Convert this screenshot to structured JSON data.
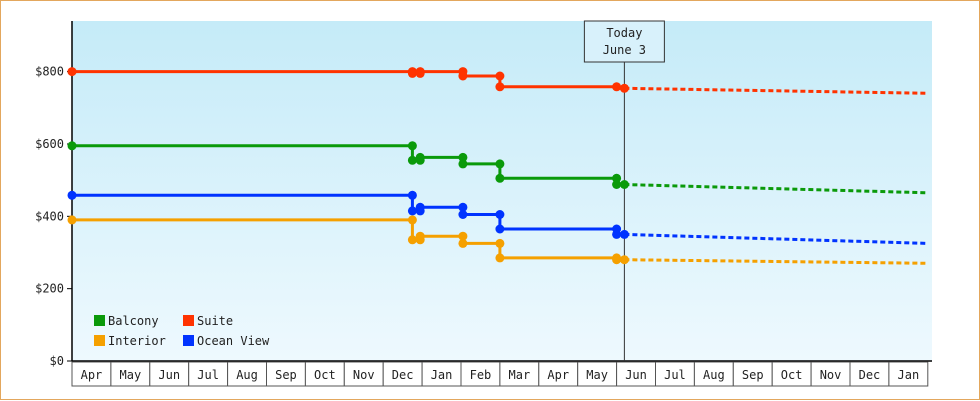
{
  "chart_data": {
    "type": "line",
    "title": "",
    "xlabel": "",
    "ylabel": "",
    "y_ticks": [
      "$0",
      "$200",
      "$400",
      "$600",
      "$800"
    ],
    "y_tick_values": [
      0,
      200,
      400,
      600,
      800
    ],
    "ylim": [
      0,
      940
    ],
    "x_months": [
      "Apr",
      "May",
      "Jun",
      "Jul",
      "Aug",
      "Sep",
      "Oct",
      "Nov",
      "Dec",
      "Jan",
      "Feb",
      "Mar",
      "Apr",
      "May",
      "Jun",
      "Jul",
      "Aug",
      "Sep",
      "Oct",
      "Nov",
      "Dec",
      "Jan"
    ],
    "today": {
      "line1": "Today",
      "line2": "June 3",
      "x": 14.2
    },
    "legend": {
      "placement": "bottom-left"
    },
    "series": [
      {
        "name": "Suite",
        "color": "#ff3300",
        "history": [
          [
            0,
            800
          ],
          [
            8.75,
            800
          ],
          [
            8.75,
            795
          ],
          [
            8.95,
            795
          ],
          [
            8.95,
            800
          ],
          [
            10.05,
            800
          ],
          [
            10.05,
            788
          ],
          [
            11.0,
            788
          ],
          [
            11.0,
            758
          ],
          [
            14.0,
            758
          ],
          [
            14.0,
            754
          ],
          [
            14.2,
            754
          ]
        ],
        "points": [
          [
            0,
            800
          ],
          [
            8.75,
            800
          ],
          [
            8.75,
            795
          ],
          [
            8.95,
            795
          ],
          [
            8.95,
            800
          ],
          [
            10.05,
            800
          ],
          [
            10.05,
            788
          ],
          [
            11.0,
            788
          ],
          [
            11.0,
            758
          ],
          [
            14.0,
            758
          ],
          [
            14.2,
            754
          ]
        ],
        "forecast": [
          [
            14.2,
            754
          ],
          [
            22,
            740
          ]
        ]
      },
      {
        "name": "Balcony",
        "color": "#0a9a0a",
        "history": [
          [
            0,
            595
          ],
          [
            8.75,
            595
          ],
          [
            8.75,
            555
          ],
          [
            8.95,
            555
          ],
          [
            8.95,
            563
          ],
          [
            10.05,
            563
          ],
          [
            10.05,
            545
          ],
          [
            11.0,
            545
          ],
          [
            11.0,
            505
          ],
          [
            14.0,
            505
          ],
          [
            14.0,
            488
          ],
          [
            14.2,
            488
          ]
        ],
        "points": [
          [
            0,
            595
          ],
          [
            8.75,
            595
          ],
          [
            8.75,
            555
          ],
          [
            8.95,
            555
          ],
          [
            8.95,
            563
          ],
          [
            10.05,
            563
          ],
          [
            10.05,
            545
          ],
          [
            11.0,
            545
          ],
          [
            11.0,
            505
          ],
          [
            14.0,
            505
          ],
          [
            14.0,
            488
          ],
          [
            14.2,
            488
          ]
        ],
        "forecast": [
          [
            14.2,
            488
          ],
          [
            22,
            465
          ]
        ]
      },
      {
        "name": "Ocean View",
        "color": "#0033ff",
        "history": [
          [
            0,
            458
          ],
          [
            8.75,
            458
          ],
          [
            8.75,
            415
          ],
          [
            8.95,
            415
          ],
          [
            8.95,
            425
          ],
          [
            10.05,
            425
          ],
          [
            10.05,
            405
          ],
          [
            11.0,
            405
          ],
          [
            11.0,
            365
          ],
          [
            14.0,
            365
          ],
          [
            14.0,
            350
          ],
          [
            14.2,
            350
          ]
        ],
        "points": [
          [
            0,
            458
          ],
          [
            8.75,
            458
          ],
          [
            8.75,
            415
          ],
          [
            8.95,
            415
          ],
          [
            8.95,
            425
          ],
          [
            10.05,
            425
          ],
          [
            10.05,
            405
          ],
          [
            11.0,
            405
          ],
          [
            11.0,
            365
          ],
          [
            14.0,
            365
          ],
          [
            14.0,
            350
          ],
          [
            14.2,
            350
          ]
        ],
        "forecast": [
          [
            14.2,
            350
          ],
          [
            22,
            325
          ]
        ]
      },
      {
        "name": "Interior",
        "color": "#f5a000",
        "history": [
          [
            0,
            390
          ],
          [
            8.75,
            390
          ],
          [
            8.75,
            335
          ],
          [
            8.95,
            335
          ],
          [
            8.95,
            345
          ],
          [
            10.05,
            345
          ],
          [
            10.05,
            325
          ],
          [
            11.0,
            325
          ],
          [
            11.0,
            285
          ],
          [
            14.0,
            285
          ],
          [
            14.0,
            280
          ],
          [
            14.2,
            280
          ]
        ],
        "points": [
          [
            0,
            390
          ],
          [
            8.75,
            390
          ],
          [
            8.75,
            335
          ],
          [
            8.95,
            335
          ],
          [
            8.95,
            345
          ],
          [
            10.05,
            345
          ],
          [
            10.05,
            325
          ],
          [
            11.0,
            325
          ],
          [
            11.0,
            285
          ],
          [
            14.0,
            285
          ],
          [
            14.0,
            280
          ],
          [
            14.2,
            280
          ]
        ],
        "forecast": [
          [
            14.2,
            280
          ],
          [
            22,
            270
          ]
        ]
      }
    ]
  }
}
